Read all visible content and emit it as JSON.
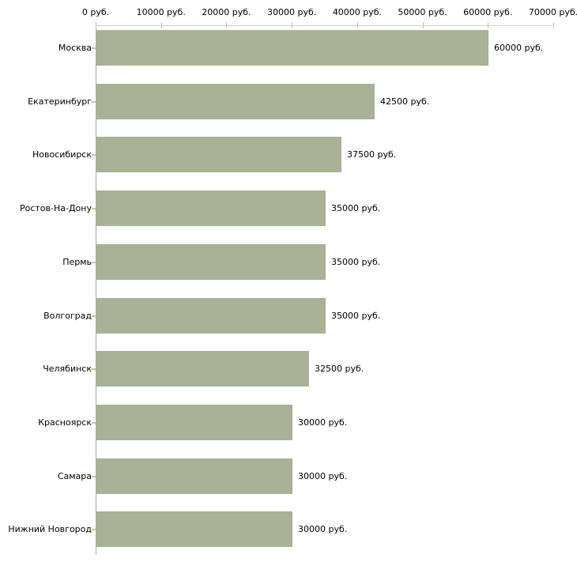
{
  "chart_data": {
    "type": "bar",
    "orientation": "horizontal",
    "title": "",
    "xlabel": "",
    "ylabel": "",
    "unit": "руб.",
    "xlim": [
      0,
      70000
    ],
    "x_axis_position": "top",
    "grid": false,
    "legend": false,
    "x_ticks": [
      0,
      10000,
      20000,
      30000,
      40000,
      50000,
      60000,
      70000
    ],
    "x_tick_labels": [
      "0 руб.",
      "10000 руб.",
      "20000 руб.",
      "30000 руб.",
      "40000 руб.",
      "50000 руб.",
      "60000 руб.",
      "70000 руб."
    ],
    "categories": [
      "Москва",
      "Екатеринбург",
      "Новосибирск",
      "Ростов-На-Дону",
      "Пермь",
      "Волгоград",
      "Челябинск",
      "Красноярск",
      "Самара",
      "Нижний Новгород"
    ],
    "values": [
      60000,
      42500,
      37500,
      35000,
      35000,
      35000,
      32500,
      30000,
      30000,
      30000
    ],
    "value_labels": [
      "60000 руб.",
      "42500 руб.",
      "37500 руб.",
      "35000 руб.",
      "35000 руб.",
      "35000 руб.",
      "32500 руб.",
      "30000 руб.",
      "30000 руб.",
      "30000 руб."
    ],
    "colors": {
      "bar": "#A9B196",
      "axis_line": "#CCCCCC",
      "y_axis_line": "#AAAAAA",
      "tick_mark": "#C6C69C",
      "text": "#000000",
      "background": "#FFFFFF"
    }
  }
}
